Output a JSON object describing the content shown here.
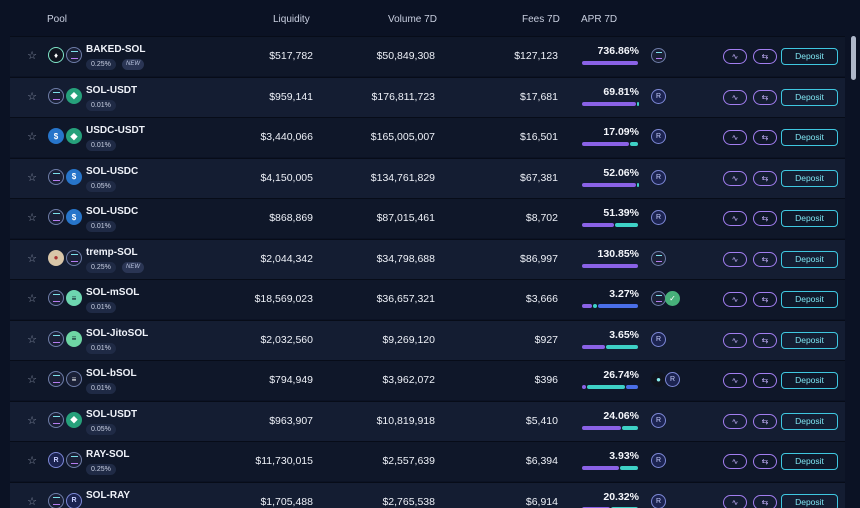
{
  "header": {
    "pool": "Pool",
    "liquidity": "Liquidity",
    "volume": "Volume 7D",
    "fees": "Fees 7D",
    "apr": "APR 7D"
  },
  "deposit_label": "Deposit",
  "new_label": "NEW",
  "colors": {
    "accent": "#a27ef0",
    "teal": "#3fc7e0",
    "bar_purple": "#8a62e6",
    "bar_teal": "#3ed1c6",
    "bar_blue": "#4a6fe8"
  },
  "rows": [
    {
      "name": "BAKED-SOL",
      "fee": "0.25%",
      "new": true,
      "tokens": [
        "bk",
        "sol"
      ],
      "liq": "$517,782",
      "vol": "$50,849,308",
      "fees": "$127,123",
      "apr": "736.86%",
      "bar": [
        1.0,
        0,
        0
      ],
      "rewards": [
        "sol"
      ]
    },
    {
      "name": "SOL-USDT",
      "fee": "0.01%",
      "tokens": [
        "sol",
        "usdt"
      ],
      "liq": "$959,141",
      "vol": "$176,811,723",
      "fees": "$17,681",
      "apr": "69.81%",
      "bar": [
        0.97,
        0.03,
        0
      ],
      "rewards": [
        "ray"
      ]
    },
    {
      "name": "USDC-USDT",
      "fee": "0.01%",
      "tokens": [
        "usdc",
        "usdt"
      ],
      "liq": "$3,440,066",
      "vol": "$165,005,007",
      "fees": "$16,501",
      "apr": "17.09%",
      "bar": [
        0.84,
        0.16,
        0
      ],
      "rewards": [
        "ray"
      ]
    },
    {
      "name": "SOL-USDC",
      "fee": "0.05%",
      "tokens": [
        "sol",
        "usdc"
      ],
      "liq": "$4,150,005",
      "vol": "$134,761,829",
      "fees": "$67,381",
      "apr": "52.06%",
      "bar": [
        0.96,
        0.04,
        0
      ],
      "rewards": [
        "ray"
      ]
    },
    {
      "name": "SOL-USDC",
      "fee": "0.01%",
      "tokens": [
        "sol",
        "usdc"
      ],
      "liq": "$868,869",
      "vol": "$87,015,461",
      "fees": "$8,702",
      "apr": "51.39%",
      "bar": [
        0.58,
        0.42,
        0
      ],
      "rewards": [
        "ray"
      ]
    },
    {
      "name": "tremp-SOL",
      "fee": "0.25%",
      "new": true,
      "tokens": [
        "tremp",
        "sol"
      ],
      "liq": "$2,044,342",
      "vol": "$34,798,688",
      "fees": "$86,997",
      "apr": "130.85%",
      "bar": [
        1.0,
        0,
        0
      ],
      "rewards": [
        "sol"
      ]
    },
    {
      "name": "SOL-mSOL",
      "fee": "0.01%",
      "tokens": [
        "sol",
        "msol"
      ],
      "liq": "$18,569,023",
      "vol": "$36,657,321",
      "fees": "$3,666",
      "apr": "3.27%",
      "bar": [
        0.2,
        0.08,
        0.72
      ],
      "rewards": [
        "sol",
        "green"
      ]
    },
    {
      "name": "SOL-JitoSOL",
      "fee": "0.01%",
      "tokens": [
        "sol",
        "jito"
      ],
      "liq": "$2,032,560",
      "vol": "$9,269,120",
      "fees": "$927",
      "apr": "3.65%",
      "bar": [
        0.42,
        0.58,
        0
      ],
      "rewards": [
        "ray"
      ]
    },
    {
      "name": "SOL-bSOL",
      "fee": "0.01%",
      "tokens": [
        "sol",
        "bsol"
      ],
      "liq": "$794,949",
      "vol": "$3,962,072",
      "fees": "$396",
      "apr": "26.74%",
      "bar": [
        0.08,
        0.7,
        0.22
      ],
      "rewards": [
        "drop",
        "ray"
      ]
    },
    {
      "name": "SOL-USDT",
      "fee": "0.05%",
      "tokens": [
        "sol",
        "usdt"
      ],
      "liq": "$963,907",
      "vol": "$10,819,918",
      "fees": "$5,410",
      "apr": "24.06%",
      "bar": [
        0.7,
        0.3,
        0
      ],
      "rewards": [
        "ray"
      ]
    },
    {
      "name": "RAY-SOL",
      "fee": "0.25%",
      "tokens": [
        "ray",
        "sol"
      ],
      "liq": "$11,730,015",
      "vol": "$2,557,639",
      "fees": "$6,394",
      "apr": "3.93%",
      "bar": [
        0.66,
        0.34,
        0
      ],
      "rewards": [
        "ray"
      ]
    },
    {
      "name": "SOL-RAY",
      "fee": "",
      "tokens": [
        "sol",
        "ray"
      ],
      "liq": "$1,705,488",
      "vol": "$2,765,538",
      "fees": "$6,914",
      "apr": "20.32%",
      "bar": [
        0.5,
        0.5,
        0
      ],
      "rewards": [
        "ray"
      ]
    }
  ]
}
